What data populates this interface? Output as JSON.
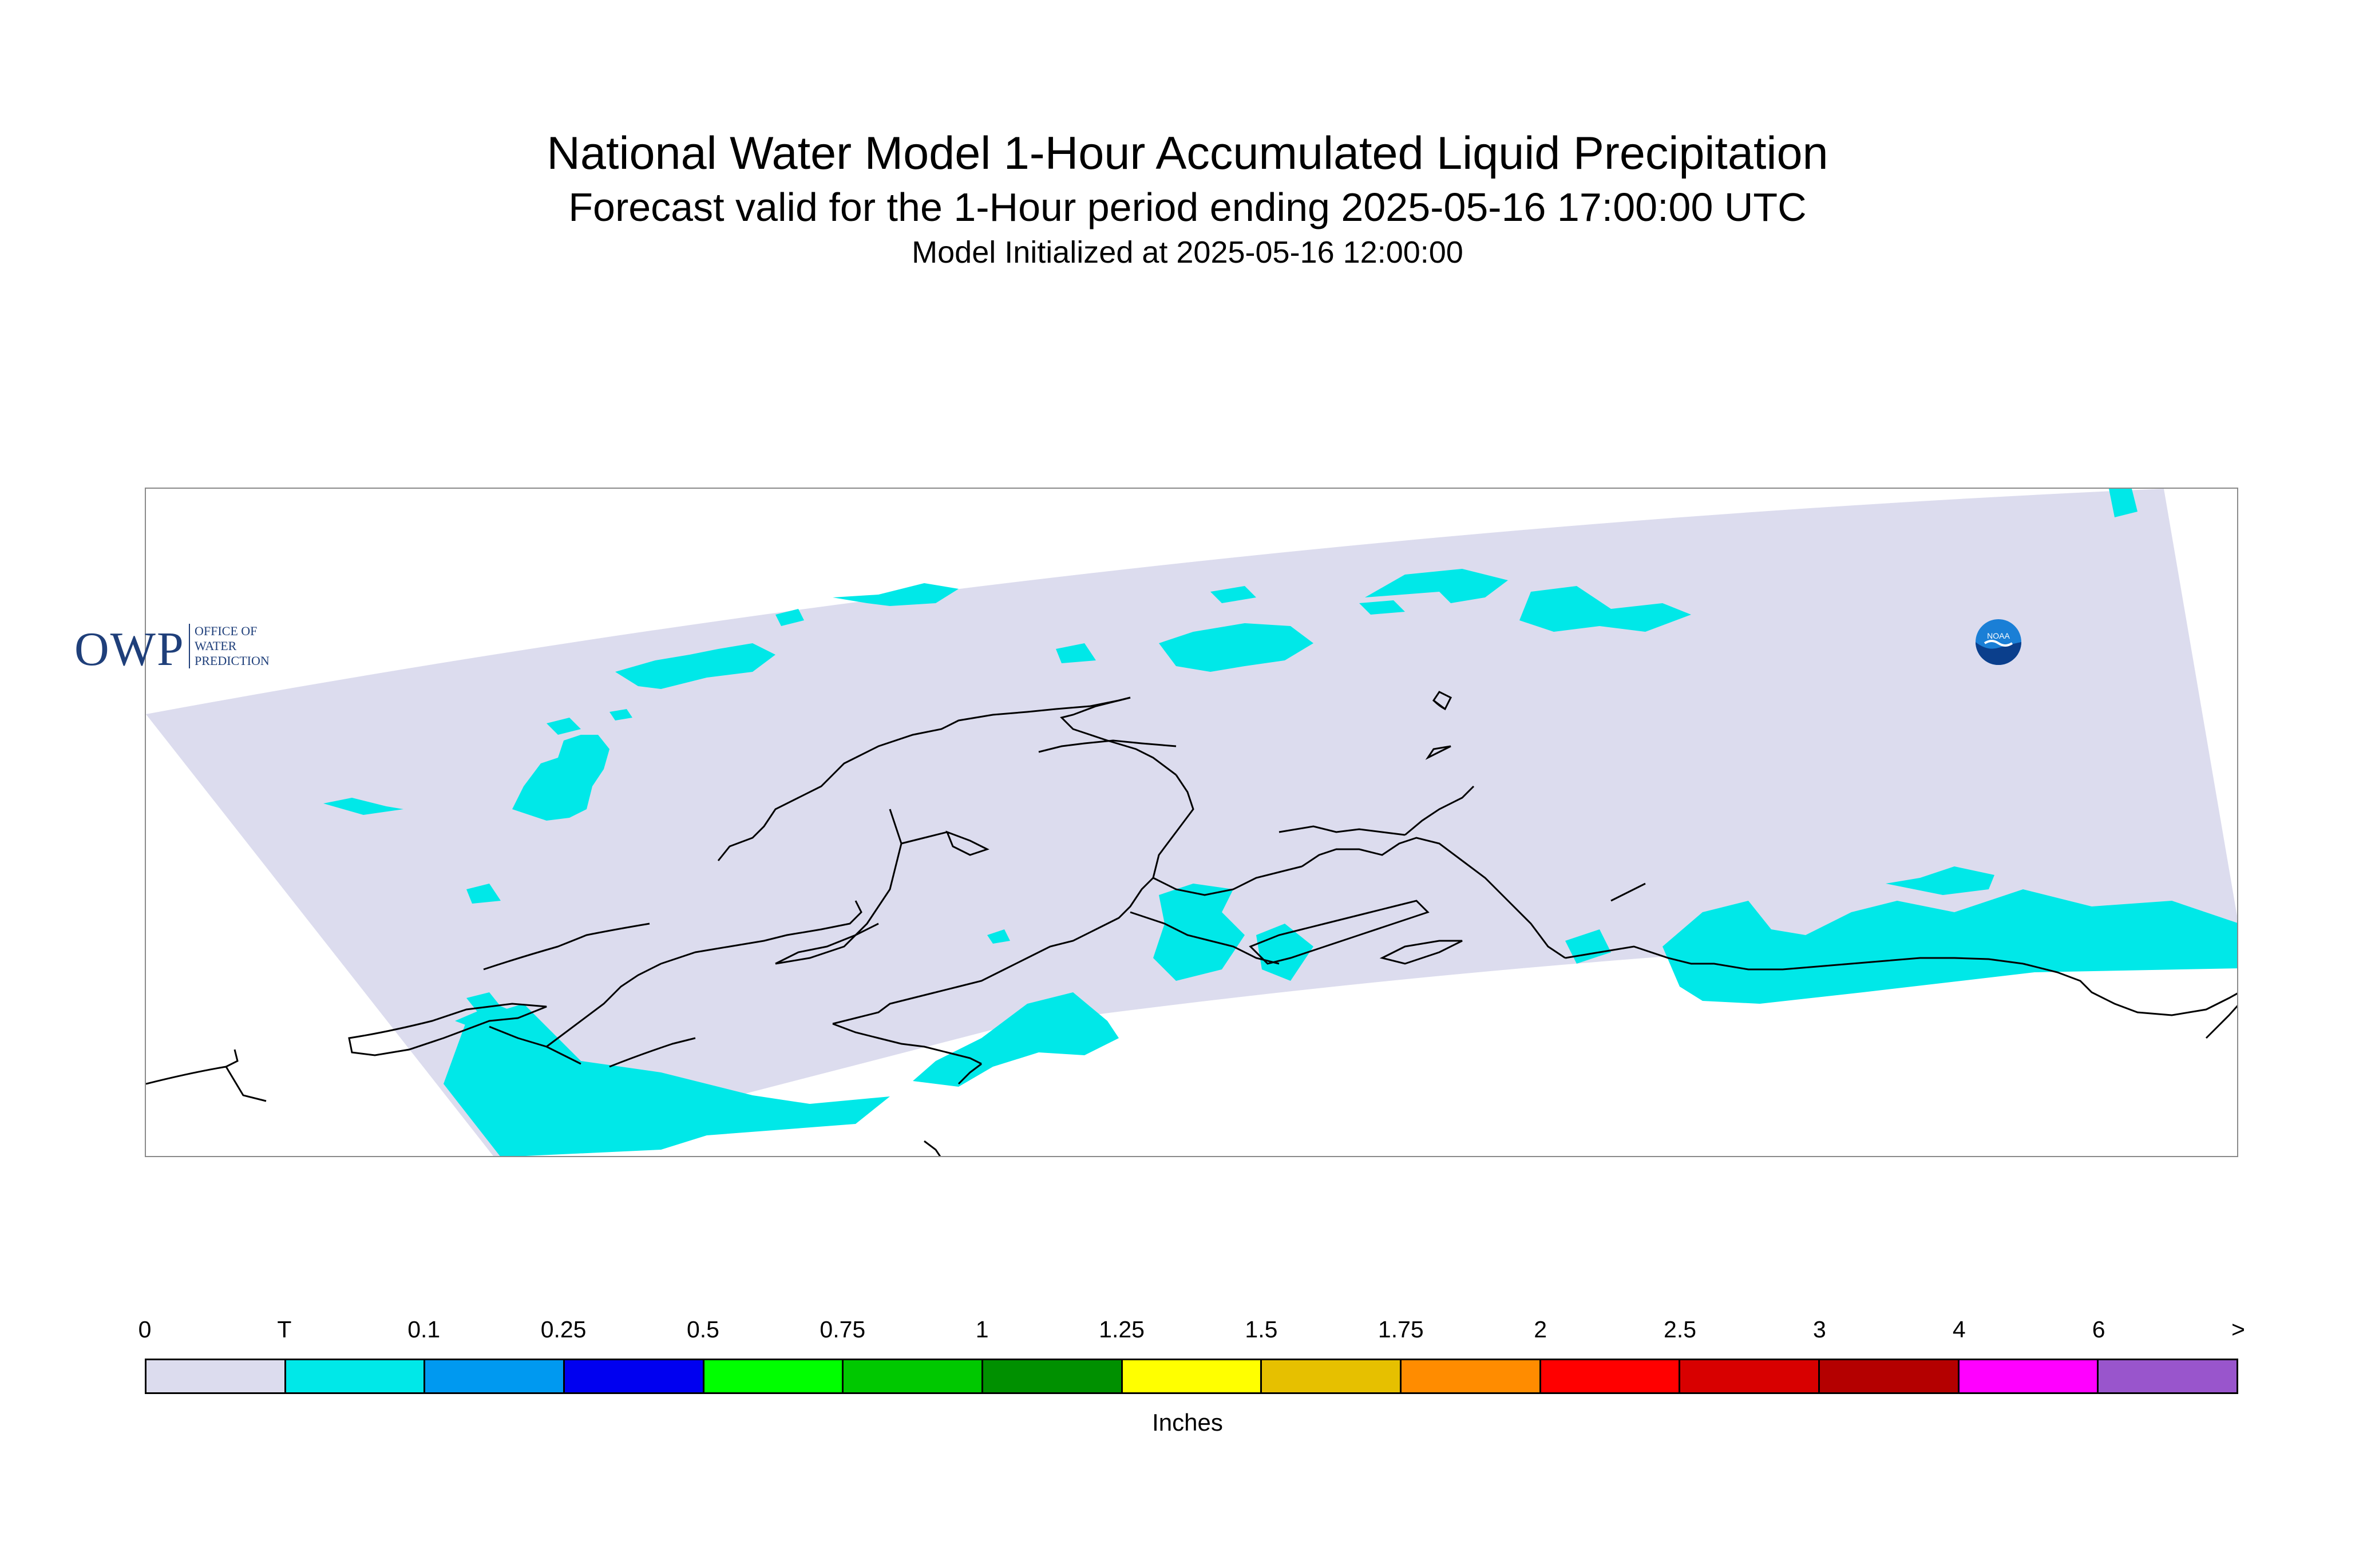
{
  "title": "National Water Model 1-Hour Accumulated Liquid Precipitation",
  "subtitle": "Forecast valid for the 1-Hour period ending 2025-05-16 17:00:00 UTC",
  "init_line": "Model Initialized at 2025-05-16 12:00:00",
  "logo_left": {
    "letters": "OWP",
    "lines": [
      "OFFICE OF",
      "WATER",
      "PREDICTION"
    ]
  },
  "logo_right": {
    "letters": "NOAA"
  },
  "colors": {
    "domain": "#dcdcee",
    "trace": "#00e8e8",
    "coast": "#000000",
    "frame": "#8a8a8a"
  },
  "colorbar": {
    "labels": [
      "0",
      "T",
      "0.1",
      "0.25",
      "0.5",
      "0.75",
      "1",
      "1.25",
      "1.5",
      "1.75",
      "2",
      "2.5",
      "3",
      "4",
      "6",
      ">"
    ],
    "colors": [
      "#dcdcee",
      "#00e8e8",
      "#0099f0",
      "#0000f0",
      "#00ff00",
      "#00c800",
      "#009000",
      "#ffff00",
      "#e6c000",
      "#ff8c00",
      "#ff0000",
      "#d80000",
      "#b40000",
      "#ff00ff",
      "#9955cc"
    ],
    "units": "Inches"
  }
}
